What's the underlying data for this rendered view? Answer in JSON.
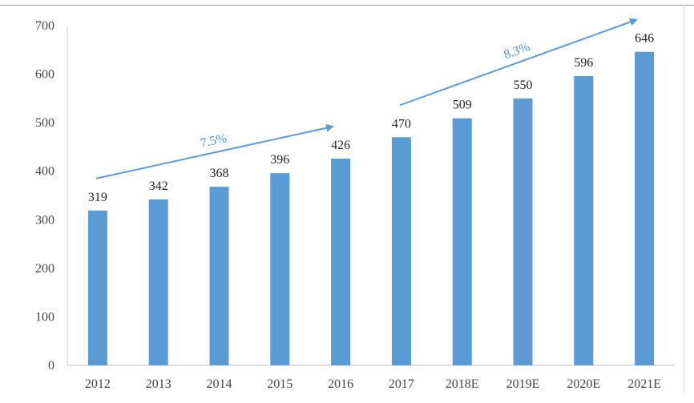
{
  "chart_data": {
    "type": "bar",
    "categories": [
      "2012",
      "2013",
      "2014",
      "2015",
      "2016",
      "2017",
      "2018E",
      "2019E",
      "2020E",
      "2021E"
    ],
    "values": [
      319,
      342,
      368,
      396,
      426,
      470,
      509,
      550,
      596,
      646
    ],
    "title": "",
    "xlabel": "",
    "ylabel": "",
    "ylim": [
      0,
      700
    ],
    "yticks": [
      0,
      100,
      200,
      300,
      400,
      500,
      600,
      700
    ],
    "grid": false,
    "bar_color": "#5b9bd5",
    "annotations": [
      {
        "text": "7.5%",
        "from_category": "2012",
        "to_category": "2016",
        "color": "#5b9bd5"
      },
      {
        "text": "8.3%",
        "from_category": "2017",
        "to_category": "2021E",
        "color": "#5b9bd5"
      }
    ]
  }
}
